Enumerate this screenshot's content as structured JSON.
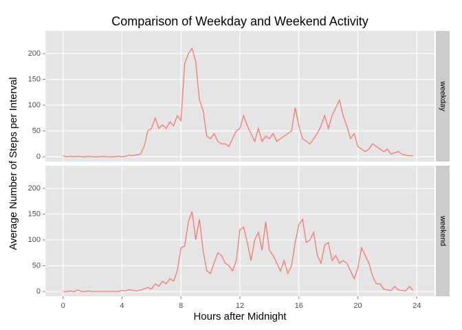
{
  "chart_data": [
    {
      "type": "line",
      "title": "Comparison of Weekday and Weekend Activity",
      "y_label": "Average Number of Steps per Interval",
      "facet": "weekday",
      "color": "#f8766d",
      "x": [
        0,
        0.25,
        0.5,
        0.75,
        1,
        1.25,
        1.5,
        1.75,
        2,
        2.25,
        2.5,
        2.75,
        3,
        3.25,
        3.5,
        3.75,
        4,
        4.25,
        4.5,
        4.75,
        5,
        5.25,
        5.5,
        5.75,
        6,
        6.25,
        6.5,
        6.75,
        7,
        7.25,
        7.5,
        7.75,
        8,
        8.25,
        8.5,
        8.75,
        9,
        9.25,
        9.5,
        9.75,
        10,
        10.25,
        10.5,
        10.75,
        11,
        11.25,
        11.5,
        11.75,
        12,
        12.25,
        12.5,
        12.75,
        13,
        13.25,
        13.5,
        13.75,
        14,
        14.25,
        14.5,
        14.75,
        15,
        15.25,
        15.5,
        15.75,
        16,
        16.25,
        16.5,
        16.75,
        17,
        17.25,
        17.5,
        17.75,
        18,
        18.25,
        18.5,
        18.75,
        19,
        19.25,
        19.5,
        19.75,
        20,
        20.25,
        20.5,
        20.75,
        21,
        21.25,
        21.5,
        21.75,
        22,
        22.25,
        22.5,
        22.75,
        23,
        23.25,
        23.5,
        23.75
      ],
      "values": [
        2,
        0,
        1,
        0,
        1,
        0,
        0,
        1,
        0,
        0,
        0,
        1,
        0,
        0,
        0,
        1,
        0,
        1,
        3,
        2,
        4,
        5,
        20,
        50,
        55,
        75,
        55,
        62,
        55,
        68,
        60,
        80,
        70,
        180,
        200,
        210,
        185,
        110,
        90,
        40,
        35,
        45,
        30,
        25,
        25,
        20,
        35,
        50,
        55,
        80,
        60,
        45,
        30,
        55,
        30,
        40,
        35,
        45,
        30,
        35,
        40,
        45,
        50,
        95,
        60,
        35,
        30,
        25,
        35,
        45,
        60,
        80,
        55,
        80,
        95,
        110,
        80,
        60,
        35,
        45,
        20,
        15,
        10,
        15,
        25,
        20,
        15,
        10,
        15,
        5,
        8,
        10,
        5,
        3,
        2,
        2
      ],
      "xlim": [
        -1.2,
        25.2
      ],
      "ylim": [
        -9.3,
        244
      ],
      "yticks": [
        0,
        50,
        100,
        150,
        200
      ],
      "grid": true
    },
    {
      "type": "line",
      "x_label": "Hours after Midnight",
      "facet": "weekend",
      "color": "#f8766d",
      "x": [
        0,
        0.25,
        0.5,
        0.75,
        1,
        1.25,
        1.5,
        1.75,
        2,
        2.25,
        2.5,
        2.75,
        3,
        3.25,
        3.5,
        3.75,
        4,
        4.25,
        4.5,
        4.75,
        5,
        5.25,
        5.5,
        5.75,
        6,
        6.25,
        6.5,
        6.75,
        7,
        7.25,
        7.5,
        7.75,
        8,
        8.25,
        8.5,
        8.75,
        9,
        9.25,
        9.5,
        9.75,
        10,
        10.25,
        10.5,
        10.75,
        11,
        11.25,
        11.5,
        11.75,
        12,
        12.25,
        12.5,
        12.75,
        13,
        13.25,
        13.5,
        13.75,
        14,
        14.25,
        14.5,
        14.75,
        15,
        15.25,
        15.5,
        15.75,
        16,
        16.25,
        16.5,
        16.75,
        17,
        17.25,
        17.5,
        17.75,
        18,
        18.25,
        18.5,
        18.75,
        19,
        19.25,
        19.5,
        19.75,
        20,
        20.25,
        20.5,
        20.75,
        21,
        21.25,
        21.5,
        21.75,
        22,
        22.25,
        22.5,
        22.75,
        23,
        23.25,
        23.5,
        23.75
      ],
      "values": [
        0,
        0,
        1,
        0,
        3,
        0,
        0,
        1,
        0,
        0,
        0,
        0,
        0,
        0,
        0,
        0,
        2,
        1,
        4,
        2,
        1,
        3,
        5,
        8,
        5,
        15,
        10,
        20,
        15,
        25,
        20,
        40,
        85,
        88,
        135,
        155,
        100,
        140,
        80,
        40,
        35,
        55,
        75,
        70,
        55,
        50,
        40,
        60,
        120,
        125,
        95,
        60,
        100,
        115,
        80,
        135,
        80,
        70,
        55,
        40,
        60,
        35,
        50,
        95,
        130,
        140,
        95,
        100,
        115,
        70,
        55,
        90,
        95,
        60,
        70,
        55,
        60,
        55,
        40,
        25,
        45,
        85,
        70,
        55,
        30,
        15,
        15,
        5,
        3,
        2,
        10,
        3,
        2,
        1,
        10,
        2
      ],
      "xlim": [
        -1.2,
        25.2
      ],
      "ylim": [
        -9.3,
        244
      ],
      "xticks": [
        0,
        4,
        8,
        12,
        16,
        20,
        24
      ],
      "yticks": [
        0,
        50,
        100,
        150,
        200
      ],
      "grid": true
    }
  ]
}
